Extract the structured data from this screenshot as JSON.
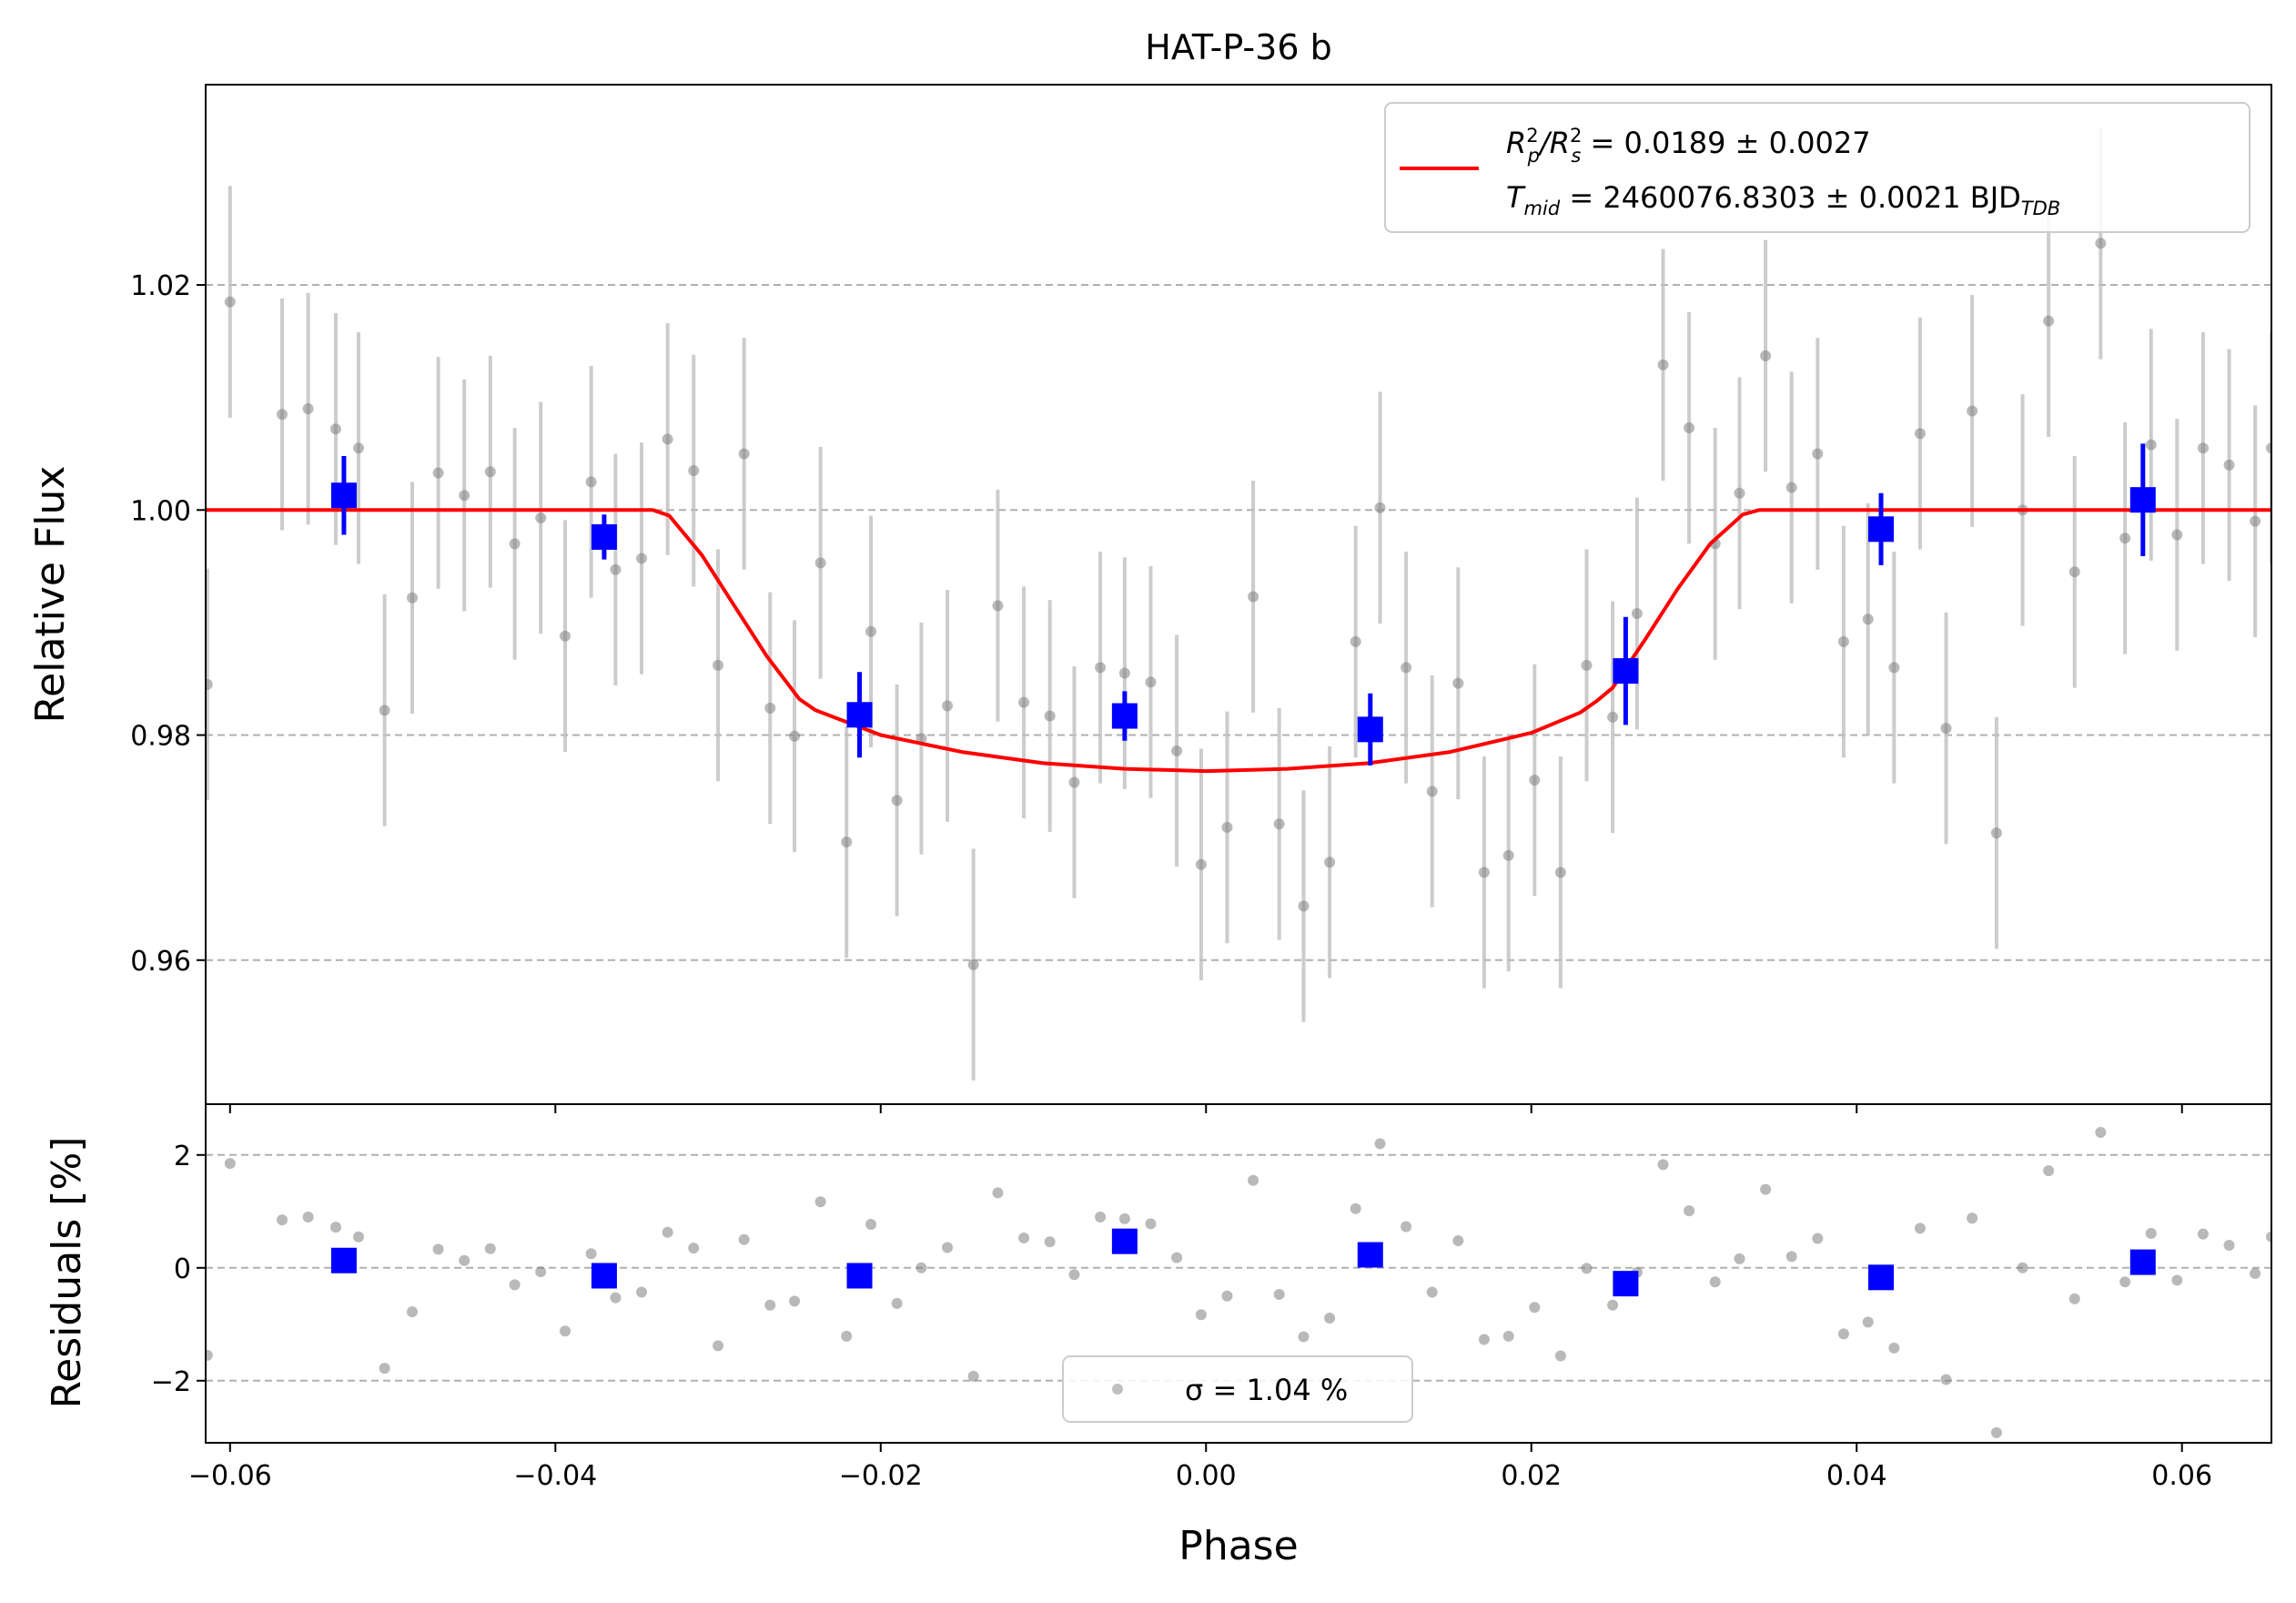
{
  "chart_data": {
    "title": "HAT-P-36 b",
    "colors": {
      "raw": "#808080",
      "raw_err": "#bfbfbf",
      "binned": "#0000ff",
      "model": "#ff0000",
      "grid": "#b0b0b0"
    },
    "top": {
      "type": "scatter",
      "xlabel": "Phase",
      "ylabel": "Relative Flux",
      "xlim": [
        -0.0615,
        0.0655
      ],
      "ylim": [
        0.9472,
        1.0378
      ],
      "yticks": [
        0.96,
        0.98,
        1.0,
        1.02
      ],
      "ytick_labels": [
        "0.96",
        "0.98",
        "1.00",
        "1.02"
      ],
      "grid": "y-dashed",
      "legend": {
        "placement": "top-right",
        "line1": {
          "lead": "R",
          "sup1": "2",
          "sub1": "p",
          "mid": "/R",
          "sup2": "2",
          "sub2": "s",
          "tail": " = 0.0189 ± 0.0027"
        },
        "line2": {
          "lead": "T",
          "sub": "mid",
          "mid": " = 2460076.8303 ± 0.0021 BJD",
          "tail_sub": "TDB"
        }
      },
      "model": {
        "name": "transit model",
        "x": [
          -0.0615,
          -0.034,
          -0.033,
          -0.031,
          -0.029,
          -0.027,
          -0.025,
          -0.024,
          -0.02,
          -0.015,
          -0.01,
          -0.005,
          0.0,
          0.005,
          0.01,
          0.015,
          0.02,
          0.023,
          0.024,
          0.025,
          0.027,
          0.029,
          0.031,
          0.033,
          0.034,
          0.0655
        ],
        "y": [
          1.0,
          1.0,
          0.9995,
          0.996,
          0.9915,
          0.987,
          0.9832,
          0.9822,
          0.98,
          0.9785,
          0.9775,
          0.977,
          0.9768,
          0.977,
          0.9775,
          0.9785,
          0.9802,
          0.982,
          0.983,
          0.9842,
          0.9885,
          0.993,
          0.997,
          0.9996,
          1.0,
          1.0
        ]
      },
      "raw_points": {
        "x": [
          -0.0614,
          -0.06,
          -0.0568,
          -0.0552,
          -0.0535,
          -0.0521,
          -0.0505,
          -0.0488,
          -0.0472,
          -0.0456,
          -0.044,
          -0.0425,
          -0.0409,
          -0.0394,
          -0.0378,
          -0.0363,
          -0.0347,
          -0.0331,
          -0.0315,
          -0.03,
          -0.0284,
          -0.0268,
          -0.0253,
          -0.0237,
          -0.0221,
          -0.0206,
          -0.019,
          -0.0175,
          -0.0159,
          -0.0143,
          -0.0128,
          -0.0112,
          -0.0096,
          -0.0081,
          -0.0065,
          -0.005,
          -0.0034,
          -0.0018,
          -0.0003,
          0.0013,
          0.0029,
          0.0045,
          0.006,
          0.0076,
          0.0092,
          0.0107,
          0.0123,
          0.0139,
          0.0155,
          0.0171,
          0.0186,
          0.0202,
          0.0218,
          0.0234,
          0.025,
          0.0265,
          0.0281,
          0.0297,
          0.0313,
          0.0328,
          0.0344,
          0.036,
          0.0376,
          0.0392,
          0.0407,
          0.0423,
          0.0439,
          0.0455,
          0.0471,
          0.0486,
          0.0502,
          0.0518,
          0.0534,
          0.055,
          0.0565,
          0.0581,
          0.0597,
          0.0613,
          0.0629,
          0.0645,
          0.0655
        ],
        "y": [
          0.9845,
          1.0185,
          1.0085,
          1.009,
          1.0072,
          1.0055,
          0.9822,
          0.9922,
          1.0033,
          1.0013,
          1.0034,
          0.997,
          0.9993,
          0.9888,
          1.0025,
          0.9947,
          0.9957,
          1.0063,
          1.0035,
          0.9862,
          1.005,
          0.9824,
          0.9799,
          0.9953,
          0.9705,
          0.9892,
          0.9742,
          0.9797,
          0.9826,
          0.9596,
          0.9915,
          0.9829,
          0.9817,
          0.9758,
          0.986,
          0.9855,
          0.9847,
          0.9786,
          0.9685,
          0.9718,
          0.9923,
          0.9721,
          0.9648,
          0.9687,
          0.9883,
          1.0002,
          0.986,
          0.975,
          0.9846,
          0.9678,
          0.9693,
          0.976,
          0.9678,
          0.9862,
          0.9816,
          0.9908,
          1.0129,
          1.0073,
          0.997,
          1.0015,
          1.0137,
          1.002,
          1.005,
          0.9883,
          0.9903,
          0.986,
          1.0068,
          0.9806,
          1.0088,
          0.9713,
          1.0,
          1.0168,
          0.9945,
          1.0237,
          0.9975,
          1.0058,
          0.9978,
          1.0055,
          1.004,
          0.999,
          1.0055
        ],
        "yerr": 0.0103
      },
      "binned_points": {
        "x": [
          -0.053,
          -0.037,
          -0.0213,
          -0.005,
          0.0101,
          0.0258,
          0.0415,
          0.0576
        ],
        "y": [
          1.0013,
          0.9976,
          0.9818,
          0.9817,
          0.9805,
          0.9857,
          0.9983,
          1.0009
        ],
        "yerr": [
          0.0035,
          0.002,
          0.0038,
          0.0022,
          0.0032,
          0.0048,
          0.0032,
          0.005
        ]
      }
    },
    "bottom": {
      "type": "scatter",
      "xlabel": "Phase",
      "ylabel": "Residuals [%]",
      "xlim": [
        -0.0615,
        0.0655
      ],
      "ylim": [
        -3.1,
        2.9
      ],
      "xticks": [
        -0.06,
        -0.04,
        -0.02,
        0.0,
        0.02,
        0.04,
        0.06
      ],
      "xtick_labels": [
        "−0.06",
        "−0.04",
        "−0.02",
        "0.00",
        "0.02",
        "0.04",
        "0.06"
      ],
      "yticks": [
        -2,
        0,
        2
      ],
      "ytick_labels": [
        "−2",
        "0",
        "2"
      ],
      "grid": "y-dashed",
      "legend": {
        "placement": "lower-center",
        "label": "σ = 1.04 %"
      },
      "raw_points": {
        "y": [
          -1.55,
          1.85,
          0.85,
          0.9,
          0.72,
          0.55,
          -1.78,
          -0.78,
          0.33,
          0.13,
          0.34,
          -0.3,
          -0.07,
          -1.12,
          0.25,
          -0.53,
          -0.43,
          0.63,
          0.35,
          -1.38,
          0.5,
          -0.66,
          -0.59,
          1.17,
          -1.21,
          0.77,
          -0.63,
          0.0,
          0.36,
          -1.92,
          1.33,
          0.53,
          0.46,
          -0.12,
          0.9,
          0.87,
          0.78,
          0.18,
          -0.83,
          -0.5,
          1.55,
          -0.47,
          -1.22,
          -0.89,
          1.05,
          2.2,
          0.73,
          -0.43,
          0.48,
          -1.27,
          -1.21,
          -0.7,
          -1.56,
          -0.01,
          -0.66,
          -0.08,
          1.83,
          1.01,
          -0.25,
          0.16,
          1.39,
          0.2,
          0.52,
          -1.17,
          -0.96,
          -1.42,
          0.7,
          -1.98,
          0.88,
          -2.92,
          0.0,
          1.72,
          -0.55,
          2.4,
          -0.25,
          0.61,
          -0.22,
          0.6,
          0.4,
          -0.1,
          0.55
        ]
      },
      "binned_points": {
        "y": [
          0.13,
          -0.14,
          -0.14,
          0.47,
          0.23,
          -0.28,
          -0.17,
          0.1
        ]
      }
    }
  }
}
